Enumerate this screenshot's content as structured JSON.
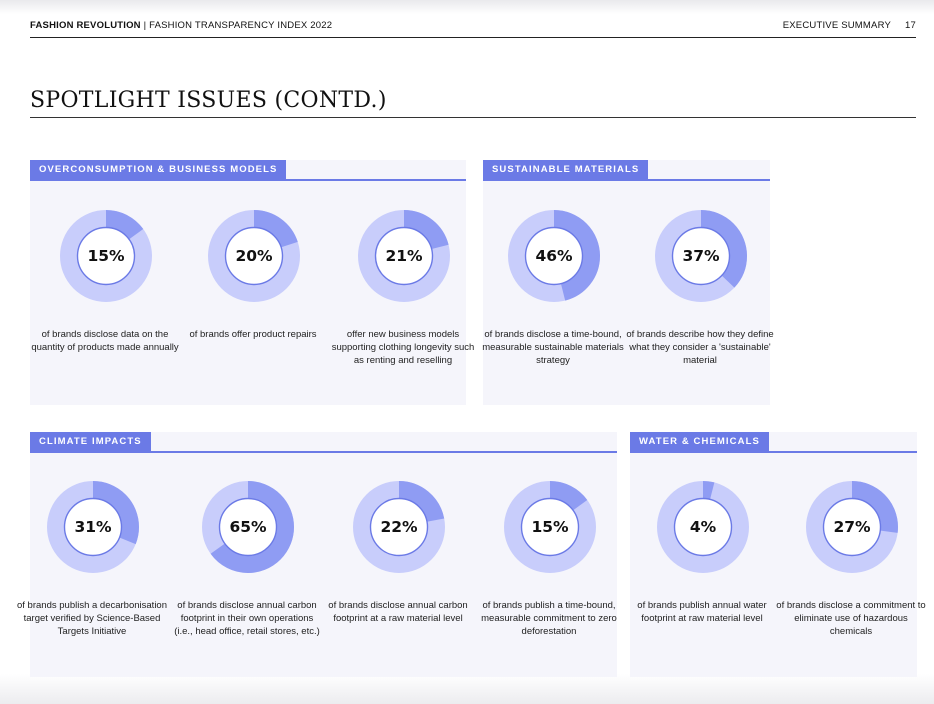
{
  "header": {
    "brand": "FASHION REVOLUTION",
    "separator": "|",
    "subtitle": "FASHION TRANSPARENCY INDEX 2022",
    "section": "EXECUTIVE SUMMARY",
    "page_number": "17"
  },
  "title": "SPOTLIGHT ISSUES (CONTD.)",
  "colors": {
    "accent": "#6b7ae6",
    "ring_track": "#c8cdfb",
    "ring_fill": "#8f9cf3",
    "panel_bg": "#f5f5fb"
  },
  "sections": [
    {
      "tag": "OVERCONSUMPTION & BUSINESS MODELS",
      "stats": [
        {
          "percent": 15,
          "label": "15%",
          "description": "of brands disclose data on the quantity of products made annually"
        },
        {
          "percent": 20,
          "label": "20%",
          "description": "of brands offer product repairs"
        },
        {
          "percent": 21,
          "label": "21%",
          "description": "offer new business models supporting clothing longevity such as renting and reselling"
        }
      ]
    },
    {
      "tag": "SUSTAINABLE MATERIALS",
      "stats": [
        {
          "percent": 46,
          "label": "46%",
          "description": "of brands disclose a time-bound, measurable sustainable materials strategy"
        },
        {
          "percent": 37,
          "label": "37%",
          "description": "of brands describe how they define what they consider a 'sustainable' material"
        }
      ]
    },
    {
      "tag": "CLIMATE IMPACTS",
      "stats": [
        {
          "percent": 31,
          "label": "31%",
          "description": "of brands publish a decarbonisation target verified by Science-Based Targets Initiative"
        },
        {
          "percent": 65,
          "label": "65%",
          "description": "of brands disclose annual carbon footprint in their own operations (i.e., head office, retail stores, etc.)"
        },
        {
          "percent": 22,
          "label": "22%",
          "description": "of brands disclose annual carbon footprint at a raw material level"
        },
        {
          "percent": 15,
          "label": "15%",
          "description": "of brands publish a time-bound, measurable commitment to zero deforestation"
        }
      ]
    },
    {
      "tag": "WATER & CHEMICALS",
      "stats": [
        {
          "percent": 4,
          "label": "4%",
          "description": "of brands publish annual water footprint at raw material level"
        },
        {
          "percent": 27,
          "label": "27%",
          "description": "of brands disclose a commitment to eliminate use of hazardous chemicals"
        }
      ]
    }
  ]
}
